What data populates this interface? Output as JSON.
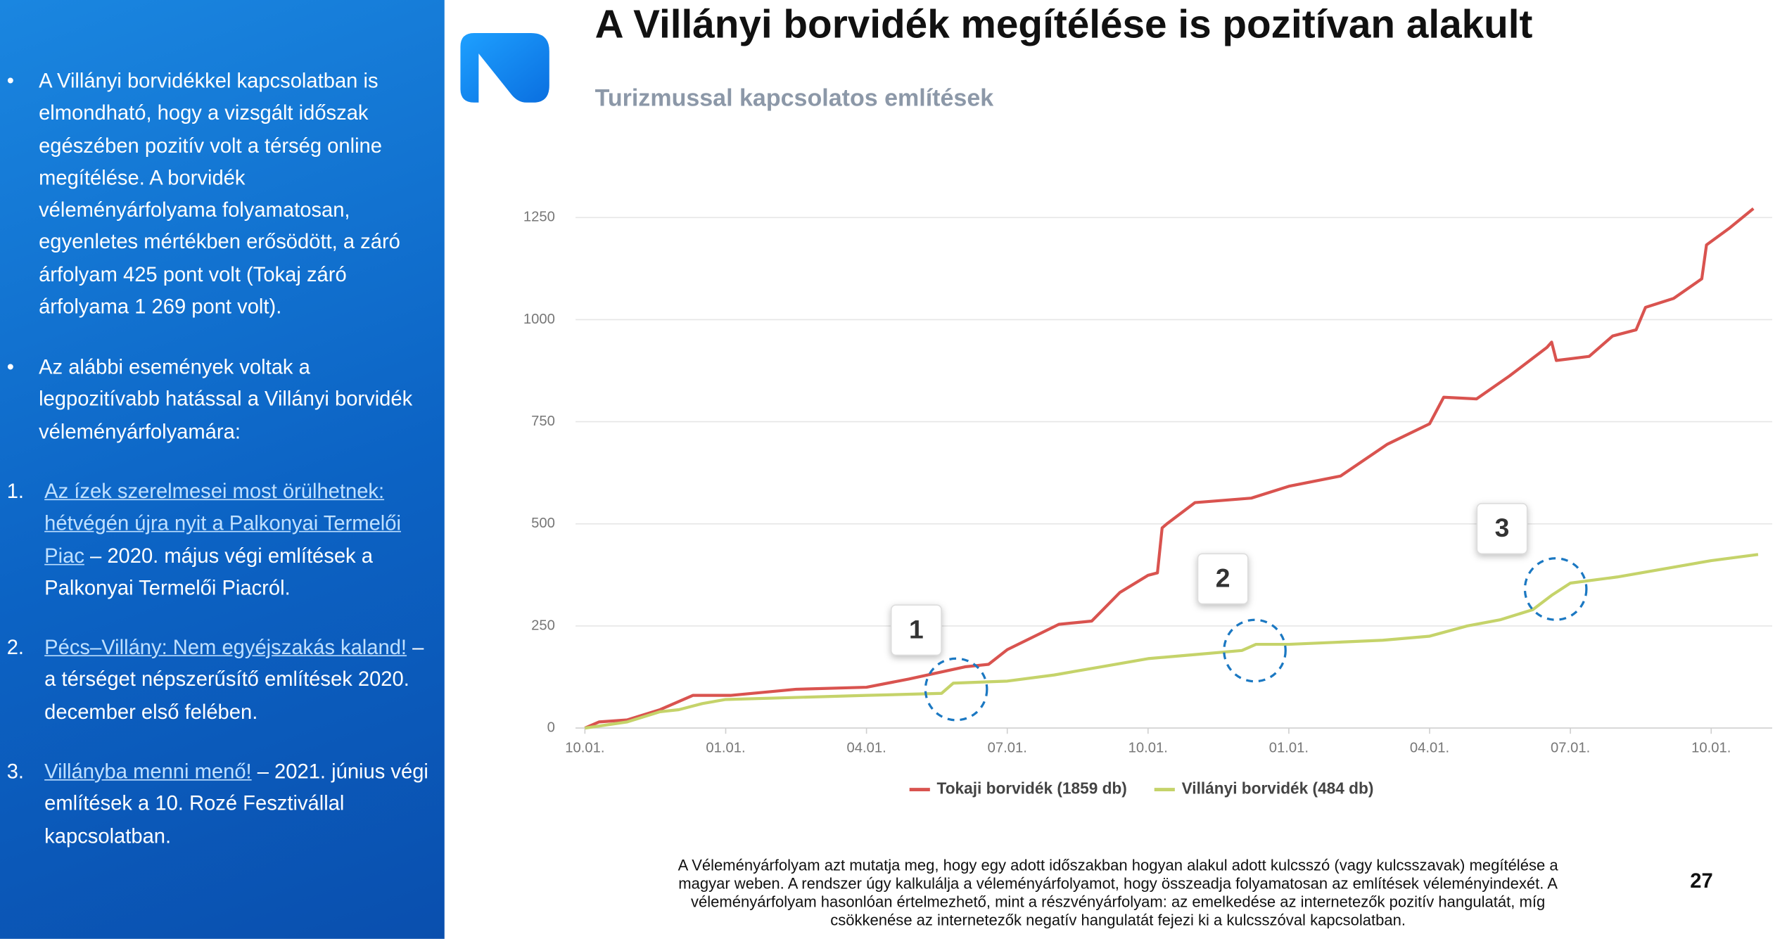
{
  "title": "A Villányi borvidék megítélése is pozitívan alakult",
  "subtitle": "Turizmussal kapcsolatos említések",
  "sidebar": {
    "bullets": [
      "A Villányi borvidékkel kapcsolatban is elmondható, hogy a vizsgált időszak egészében pozitív volt a térség online megítélése. A borvidék véleményárfolyama folyamatosan, egyenletes mértékben erősödött, a záró árfolyam 425 pont volt (Tokaj záró árfolyama 1 269 pont volt).",
      "Az alábbi események voltak a legpozitívabb hatással a Villányi borvidék véleményárfolyamára:"
    ],
    "events": [
      {
        "number": "1.",
        "link": "Az ízek szerelmesei most örülhetnek: hétvégén újra nyit a Palkonyai Termelői Piac",
        "text": " – 2020. május végi említések a Palkonyai Termelői Piacról."
      },
      {
        "number": "2.",
        "link": "Pécs–Villány: Nem egyéjszakás kaland!",
        "text": " – a térséget népszerűsítő említések 2020. december első felében."
      },
      {
        "number": "3.",
        "link": "Villányba menni menő!",
        "text": " – 2021. június végi említések a 10. Rozé Fesztivállal kapcsolatban."
      }
    ]
  },
  "footnote": "A Véleményárfolyam azt mutatja meg, hogy egy adott időszakban hogyan alakul adott kulcsszó (vagy kulcsszavak) megítélése a magyar weben. A rendszer úgy kalkulálja a véleményárfolyamot, hogy összeadja folyamatosan az említések véleményindexét. A véleményárfolyam hasonlóan értelmezhető, mint a részvényárfolyam: az emelkedése az internetezők pozitív hangulatát, míg csökkenése az internetezők negatív hangulatát fejezi ki a kulcsszóval kapcsolatban.",
  "page_number": "27",
  "chart_data": {
    "type": "line",
    "xlim": [
      -0.2,
      25.3
    ],
    "xticks": [
      {
        "value": 0,
        "label": "10.01."
      },
      {
        "value": 3,
        "label": "01.01."
      },
      {
        "value": 6,
        "label": "04.01."
      },
      {
        "value": 9,
        "label": "07.01."
      },
      {
        "value": 12,
        "label": "10.01."
      },
      {
        "value": 15,
        "label": "01.01."
      },
      {
        "value": 18,
        "label": "04.01."
      },
      {
        "value": 21,
        "label": "07.01."
      },
      {
        "value": 24,
        "label": "10.01."
      }
    ],
    "ylim": [
      0,
      1300
    ],
    "yticks": [
      0,
      250,
      500,
      750,
      1000,
      1250
    ],
    "grid": true,
    "legend": "bottom",
    "annotations": [
      "1",
      "2",
      "3"
    ],
    "series": [
      {
        "name": "Tokaji borvidék (1859 db)",
        "color": "#d9534f",
        "x": [
          0,
          0.3,
          0.9,
          1.6,
          2.3,
          3.1,
          4.5,
          6,
          6.9,
          8.1,
          8.6,
          9,
          10.1,
          10.8,
          11.4,
          12,
          12.2,
          12.3,
          12.4,
          13,
          14.2,
          15,
          16.1,
          17.1,
          18,
          18.3,
          19,
          19.7,
          20.5,
          20.6,
          20.7,
          21.4,
          21.9,
          22.4,
          22.6,
          23.2,
          23.8,
          23.9,
          24.4,
          24.9
        ],
        "values": [
          0,
          15,
          20,
          45,
          80,
          80,
          95,
          100,
          120,
          150,
          156,
          192,
          254,
          262,
          332,
          374,
          380,
          490,
          500,
          552,
          563,
          592,
          617,
          695,
          745,
          810,
          806,
          862,
          932,
          945,
          900,
          910,
          960,
          975,
          1030,
          1052,
          1100,
          1183,
          1225,
          1272
        ]
      },
      {
        "name": "Villányi borvidék (484 db)",
        "color": "#c5d36a",
        "x": [
          0,
          0.9,
          1.6,
          2,
          2.5,
          3,
          4.5,
          6,
          7.6,
          7.85,
          9,
          10,
          11,
          12,
          13,
          14,
          14.3,
          15,
          16,
          17,
          18,
          18.8,
          19.5,
          20.2,
          20.6,
          21,
          22,
          23,
          24,
          25
        ],
        "values": [
          0,
          15,
          40,
          45,
          60,
          70,
          75,
          80,
          85,
          110,
          115,
          130,
          150,
          170,
          180,
          190,
          205,
          205,
          210,
          215,
          225,
          250,
          265,
          290,
          325,
          355,
          370,
          390,
          410,
          425
        ]
      }
    ]
  }
}
